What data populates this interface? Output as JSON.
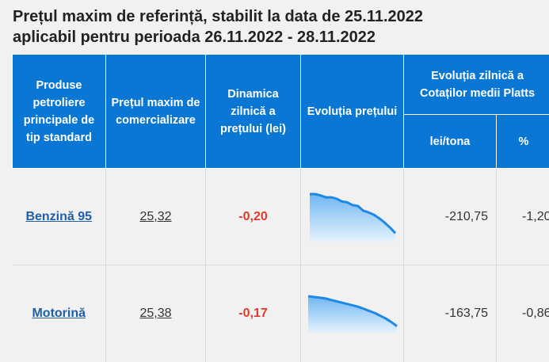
{
  "title_line1": "Prețul maxim de referință, stabilit la data de 25.11.2022",
  "title_line2": "aplicabil pentru perioada 26.11.2022 - 28.11.2022",
  "headers": {
    "product": "Produse petroliere principale de tip standard",
    "price": "Prețul maxim de comercializare",
    "dynamic": "Dinamica zilnică a prețului (lei)",
    "evolution": "Evoluția prețului",
    "platts": "Evoluția zilnică a Cotaților medii Platts",
    "lei_tona": "lei/tona",
    "percent": "%"
  },
  "rows": [
    {
      "product": "Benzină 95",
      "price": "25,32",
      "dynamic": "-0,20",
      "lei_tona": "-210,75",
      "percent": "-1,20",
      "trend": [
        1.0,
        1.0,
        0.97,
        0.93,
        0.93,
        0.9,
        0.84,
        0.82,
        0.76,
        0.74,
        0.64,
        0.6,
        0.55,
        0.47,
        0.38,
        0.27,
        0.15
      ]
    },
    {
      "product": "Motorină",
      "price": "25,38",
      "dynamic": "-0,17",
      "lei_tona": "-163,75",
      "percent": "-0,86",
      "trend": [
        1.0,
        0.98,
        0.96,
        0.94,
        0.9,
        0.86,
        0.82,
        0.78,
        0.74,
        0.7,
        0.64,
        0.58,
        0.52,
        0.44,
        0.36,
        0.26,
        0.14
      ]
    }
  ],
  "colors": {
    "header_bg": "#0b77d5",
    "negative": "#e0392b",
    "link": "#1f5fa8",
    "spark_line": "#1e88e5"
  }
}
